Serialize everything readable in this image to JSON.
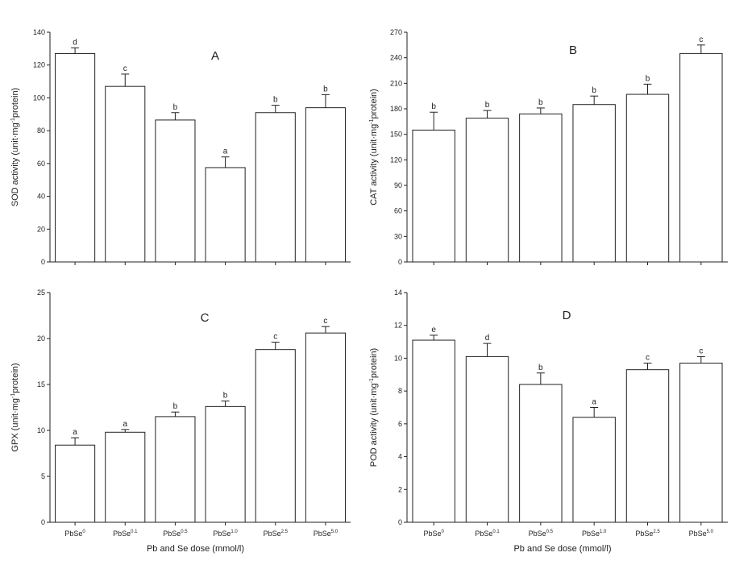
{
  "chart_data": [
    {
      "type": "bar",
      "panel_label": "A",
      "ylabel_main": "SOD activity (unit·mg",
      "ylabel_sup": "-1",
      "ylabel_tail": "protein)",
      "xlabel": "",
      "ylim": [
        0,
        140
      ],
      "yticks": [
        0,
        20,
        40,
        60,
        80,
        100,
        120,
        140
      ],
      "categories": [
        {
          "base": "PbSe",
          "sup": "0"
        },
        {
          "base": "PbSe",
          "sup": "0.1"
        },
        {
          "base": "PbSe",
          "sup": "0.5"
        },
        {
          "base": "PbSe",
          "sup": "1.0"
        },
        {
          "base": "PbSe",
          "sup": "2.5"
        },
        {
          "base": "PbSe",
          "sup": "5.0"
        }
      ],
      "values": [
        127,
        107,
        86.5,
        57.5,
        91,
        94
      ],
      "errors": [
        3.5,
        7.5,
        4.5,
        6.5,
        4.5,
        8
      ],
      "significance": [
        "d",
        "c",
        "b",
        "a",
        "b",
        "b"
      ],
      "show_categories": false
    },
    {
      "type": "bar",
      "panel_label": "B",
      "ylabel_main": "CAT activity (unit·mg",
      "ylabel_sup": "-1",
      "ylabel_tail": "protein)",
      "xlabel": "",
      "ylim": [
        0,
        270
      ],
      "yticks": [
        0,
        30,
        60,
        90,
        120,
        150,
        180,
        210,
        240,
        270
      ],
      "categories": [
        {
          "base": "PbSe",
          "sup": "0"
        },
        {
          "base": "PbSe",
          "sup": "0.1"
        },
        {
          "base": "PbSe",
          "sup": "0.5"
        },
        {
          "base": "PbSe",
          "sup": "1.0"
        },
        {
          "base": "PbSe",
          "sup": "2.5"
        },
        {
          "base": "PbSe",
          "sup": "5.0"
        }
      ],
      "values": [
        155,
        169,
        174,
        185,
        197,
        245
      ],
      "errors": [
        21,
        9,
        7,
        10,
        12,
        10
      ],
      "significance": [
        "b",
        "b",
        "b",
        "b",
        "b",
        "c"
      ],
      "show_categories": false
    },
    {
      "type": "bar",
      "panel_label": "C",
      "ylabel_main": "GPX (unit·mg",
      "ylabel_sup": "-1",
      "ylabel_tail": "protein)",
      "xlabel": "Pb and Se dose (mmol/l)",
      "ylim": [
        0,
        25
      ],
      "yticks": [
        0,
        5,
        10,
        15,
        20,
        25
      ],
      "categories": [
        {
          "base": "PbSe",
          "sup": "0"
        },
        {
          "base": "PbSe",
          "sup": "0.1"
        },
        {
          "base": "PbSe",
          "sup": "0.5"
        },
        {
          "base": "PbSe",
          "sup": "1.0"
        },
        {
          "base": "PbSe",
          "sup": "2.5"
        },
        {
          "base": "PbSe",
          "sup": "5.0"
        }
      ],
      "values": [
        8.4,
        9.8,
        11.5,
        12.6,
        18.8,
        20.6
      ],
      "errors": [
        0.8,
        0.3,
        0.5,
        0.6,
        0.8,
        0.7
      ],
      "significance": [
        "a",
        "a",
        "b",
        "b",
        "c",
        "c"
      ],
      "show_categories": true
    },
    {
      "type": "bar",
      "panel_label": "D",
      "ylabel_main": "POD activity (unit·mg",
      "ylabel_sup": "-1",
      "ylabel_tail": "protein)",
      "xlabel": "Pb and Se dose (mmol/l)",
      "ylim": [
        0,
        14
      ],
      "yticks": [
        0,
        2,
        4,
        6,
        8,
        10,
        12,
        14
      ],
      "categories": [
        {
          "base": "PbSe",
          "sup": "0"
        },
        {
          "base": "PbSe",
          "sup": "0.1"
        },
        {
          "base": "PbSe",
          "sup": "0.5"
        },
        {
          "base": "PbSe",
          "sup": "1.0"
        },
        {
          "base": "PbSe",
          "sup": "2.5"
        },
        {
          "base": "PbSe",
          "sup": "5.0"
        }
      ],
      "values": [
        11.1,
        10.1,
        8.4,
        6.4,
        9.3,
        9.7
      ],
      "errors": [
        0.3,
        0.8,
        0.7,
        0.6,
        0.4,
        0.4
      ],
      "significance": [
        "e",
        "d",
        "b",
        "a",
        "c",
        "c"
      ],
      "show_categories": true
    }
  ]
}
